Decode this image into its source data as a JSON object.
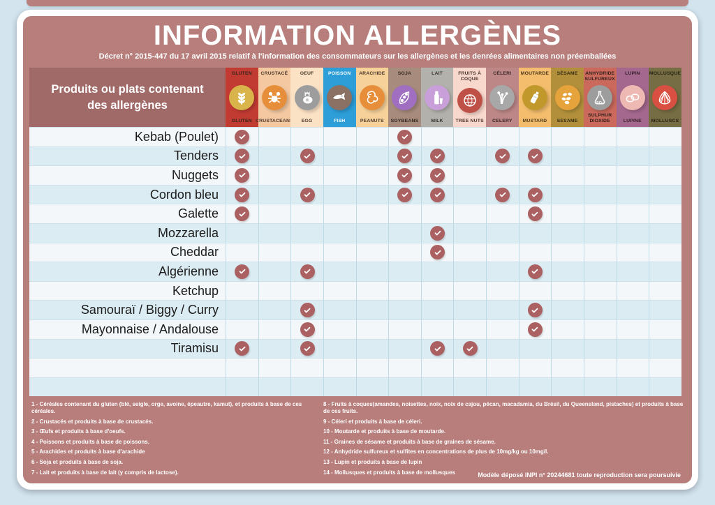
{
  "page": {
    "title": "INFORMATION ALLERGÈNES",
    "subtitle": "Décret n° 2015-447 du 17 avril 2015 relatif à l'information des consommateurs sur les allergènes et les denrées alimentaires non préemballées",
    "legal": "Modèle déposé INPI n° 20244681 toute reproduction sera poursuivie"
  },
  "colors": {
    "outer_background": "#d3e4ef",
    "panel": "#b77e7c",
    "products_header_cell": "#a06a69",
    "check_circle": "#ab6161",
    "row_light": "#f3f7f9",
    "row_blue": "#dcecf3",
    "grid_line": "#bfdae4"
  },
  "table": {
    "products_header": "Produits ou plats contenant des allergènes",
    "empty_rows": 2
  },
  "allergens": [
    {
      "fr": "GLUTEN",
      "en": "GLUTEN",
      "bg": "#c23b33",
      "circle": "#d9b44a",
      "text": "#33241a",
      "icon": "wheat-icon"
    },
    {
      "fr": "CRUSTACÉ",
      "en": "CRUSTACEANS",
      "bg": "#f4c9a2",
      "circle": "#e78e3b",
      "text": "#4a372a",
      "icon": "crab-icon"
    },
    {
      "fr": "OEUF",
      "en": "EGG",
      "bg": "#fbe2c5",
      "circle": "#9d9d9d",
      "text": "#4a372a",
      "icon": "egg-icon"
    },
    {
      "fr": "POISSON",
      "en": "FISH",
      "bg": "#2d9ed8",
      "circle": "#8a7164",
      "text": "#ffffff",
      "icon": "fish-icon"
    },
    {
      "fr": "ARACHIDE",
      "en": "PEANUTS",
      "bg": "#f6d199",
      "circle": "#e78e3b",
      "text": "#4a372a",
      "icon": "peanut-icon"
    },
    {
      "fr": "SOJA",
      "en": "SOYBEANS",
      "bg": "#a78b7c",
      "circle": "#a06fc2",
      "text": "#33261f",
      "icon": "soybean-icon"
    },
    {
      "fr": "LAIT",
      "en": "MILK",
      "bg": "#b3b1ac",
      "circle": "#c89fd8",
      "text": "#333330",
      "icon": "milk-icon"
    },
    {
      "fr": "FRUITS À COQUE",
      "en": "TREE NUTS",
      "bg": "#f8d7cc",
      "circle": "#bf5047",
      "text": "#4a332c",
      "icon": "treenut-icon"
    },
    {
      "fr": "CÉLERI",
      "en": "CELERY",
      "bg": "#bd8787",
      "circle": "#a8a8a8",
      "text": "#3a2525",
      "icon": "celery-icon"
    },
    {
      "fr": "MOUTARDE",
      "en": "MUSTARD",
      "bg": "#f3bd6d",
      "circle": "#c0982b",
      "text": "#4a381a",
      "icon": "mustard-icon"
    },
    {
      "fr": "SÉSAME",
      "en": "SESAME",
      "bg": "#b2903b",
      "circle": "#e6a23b",
      "text": "#332a10",
      "icon": "sesame-icon"
    },
    {
      "fr": "ANHYDRIDE SULFUREUX",
      "en": "SULPHUR DIOXIDE",
      "bg": "#ca695c",
      "circle": "#9d9d9d",
      "text": "#331f1b",
      "icon": "flask-icon",
      "icon_text": "SO₂"
    },
    {
      "fr": "LUPIN",
      "en": "LUPINE",
      "bg": "#a4688e",
      "circle": "#eeb9b3",
      "text": "#331f2a",
      "icon": "lupin-icon"
    },
    {
      "fr": "MOLLUSQUE",
      "en": "MOLLUSCS",
      "bg": "#776d44",
      "circle": "#d94f41",
      "text": "#272211",
      "icon": "shell-icon"
    }
  ],
  "products": [
    {
      "name": "Kebab (Poulet)",
      "checks": [
        0,
        5
      ]
    },
    {
      "name": "Tenders",
      "checks": [
        0,
        2,
        5,
        6,
        8,
        9
      ]
    },
    {
      "name": "Nuggets",
      "checks": [
        0,
        5,
        6
      ]
    },
    {
      "name": "Cordon bleu",
      "checks": [
        0,
        2,
        5,
        6,
        8,
        9
      ]
    },
    {
      "name": "Galette",
      "checks": [
        0,
        9
      ]
    },
    {
      "name": "Mozzarella",
      "checks": [
        6
      ]
    },
    {
      "name": "Cheddar",
      "checks": [
        6
      ]
    },
    {
      "name": "Algérienne",
      "checks": [
        0,
        2,
        9
      ]
    },
    {
      "name": "Ketchup",
      "checks": []
    },
    {
      "name": "Samouraï / Biggy / Curry",
      "checks": [
        2,
        9
      ]
    },
    {
      "name": "Mayonnaise / Andalouse",
      "checks": [
        2,
        9
      ]
    },
    {
      "name": "Tiramisu",
      "checks": [
        0,
        2,
        6,
        7
      ]
    }
  ],
  "footnotes": {
    "left": [
      "1 - Céréales contenant du gluten (blé, seigle, orge, avoine, épeautre, kamut), et produits à base de ces céréales.",
      "2 - Crustacés et produits à base de crustacés.",
      "3 - Œufs et produits à base d'oeufs.",
      "4 - Poissons et produits à base de poissons.",
      "5 - Arachides et produits à base d'arachide",
      "6 - Soja et produits à base de soja.",
      "7 - Lait et produits à base de lait (y compris de lactose)."
    ],
    "right": [
      "8 - Fruits à coques(amandes, noisettes, noix, noix de cajou, pécan, macadamia, du Brésil, du Queensland, pistaches) et produits à base de ces fruits.",
      "9 - Céleri et produits à base de céleri.",
      "10 - Moutarde et produits à base de moutarde.",
      "11 - Graines de sésame et produits à base de graines de sésame.",
      "12 - Anhydride sulfureux et sulfites en concentrations de plus de 10mg/kg ou 10mg/l.",
      "13 - Lupin et produits à base de lupin",
      "14 - Mollusques et produits à base de mollusques"
    ]
  }
}
